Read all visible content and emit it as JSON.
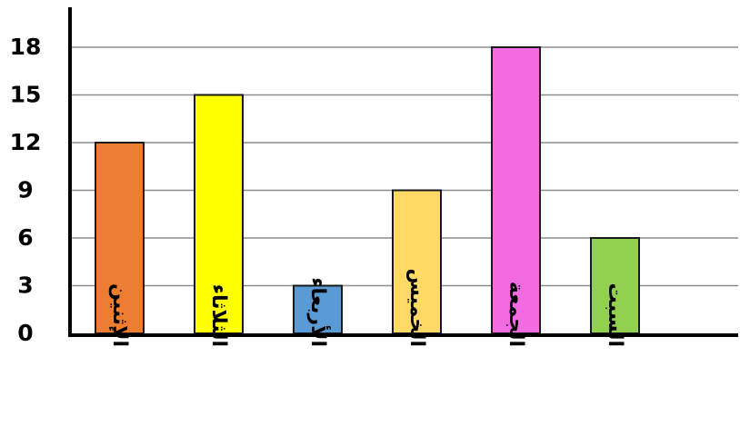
{
  "chart_data": {
    "type": "bar",
    "title": "",
    "xlabel": "",
    "ylabel": "",
    "categories": [
      "الإثنين",
      "الثلاثاء",
      "الأربعاء",
      "الخميس",
      "الجمعة",
      "السبت"
    ],
    "values": [
      12,
      15,
      3,
      9,
      18,
      6
    ],
    "colors": [
      "#ED7D31",
      "#FFFF00",
      "#5B9BD5",
      "#FFD966",
      "#F26BE0",
      "#92D050"
    ],
    "yticks": [
      0,
      3,
      6,
      9,
      12,
      15,
      18
    ],
    "ylim": [
      0,
      18
    ],
    "grid": true,
    "legend": "none"
  }
}
